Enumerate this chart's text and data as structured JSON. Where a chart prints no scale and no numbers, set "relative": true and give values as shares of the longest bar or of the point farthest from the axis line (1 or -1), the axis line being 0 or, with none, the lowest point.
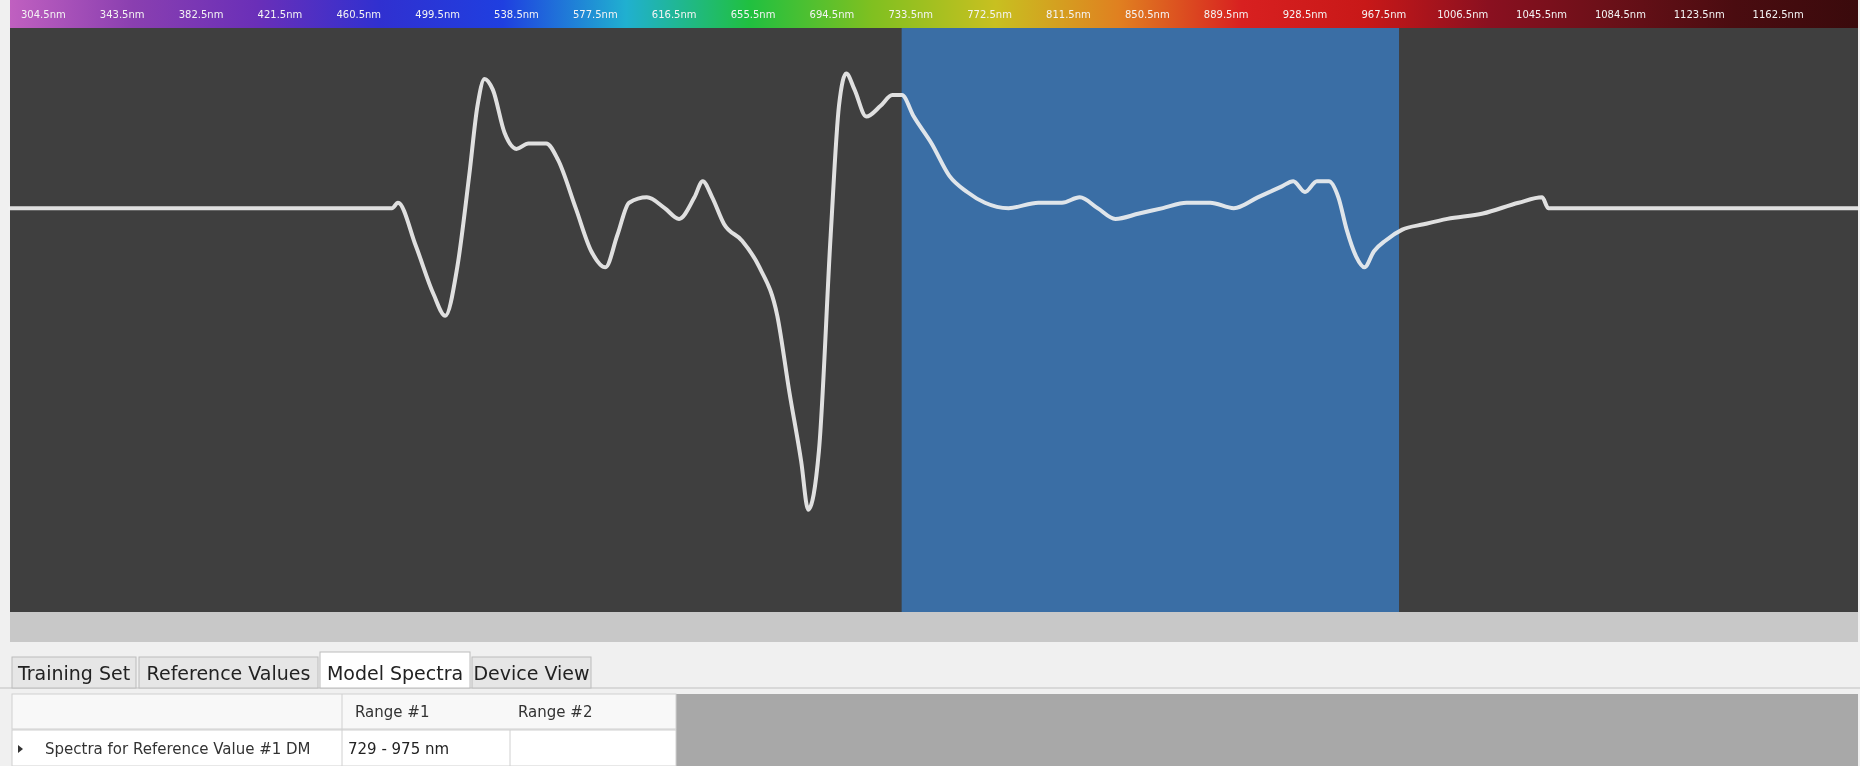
{
  "chart_data": {
    "type": "line",
    "relative": true,
    "xlim": [
      288,
      1202
    ],
    "xticks": [
      {
        "value": 304.5,
        "label": "304.5nm"
      },
      {
        "value": 343.5,
        "label": "343.5nm"
      },
      {
        "value": 382.5,
        "label": "382.5nm"
      },
      {
        "value": 421.5,
        "label": "421.5nm"
      },
      {
        "value": 460.5,
        "label": "460.5nm"
      },
      {
        "value": 499.5,
        "label": "499.5nm"
      },
      {
        "value": 538.5,
        "label": "538.5nm"
      },
      {
        "value": 577.5,
        "label": "577.5nm"
      },
      {
        "value": 616.5,
        "label": "616.5nm"
      },
      {
        "value": 655.5,
        "label": "655.5nm"
      },
      {
        "value": 694.5,
        "label": "694.5nm"
      },
      {
        "value": 733.5,
        "label": "733.5nm"
      },
      {
        "value": 772.5,
        "label": "772.5nm"
      },
      {
        "value": 811.5,
        "label": "811.5nm"
      },
      {
        "value": 850.5,
        "label": "850.5nm"
      },
      {
        "value": 889.5,
        "label": "889.5nm"
      },
      {
        "value": 928.5,
        "label": "928.5nm"
      },
      {
        "value": 967.5,
        "label": "967.5nm"
      },
      {
        "value": 1006.5,
        "label": "1006.5nm"
      },
      {
        "value": 1045.5,
        "label": "1045.5nm"
      },
      {
        "value": 1084.5,
        "label": "1084.5nm"
      },
      {
        "value": 1123.5,
        "label": "1123.5nm"
      },
      {
        "value": 1162.5,
        "label": "1162.5nm"
      }
    ],
    "x": [
      288,
      476.9,
      479.9,
      488.7,
      497.5,
      503.3,
      509.2,
      515.1,
      519.2,
      522.7,
      526.8,
      532.6,
      538.5,
      544.4,
      553.2,
      559,
      567.8,
      575.5,
      582.5,
      588.4,
      594.2,
      603,
      611.8,
      618.9,
      626.5,
      630.6,
      635.3,
      641.2,
      649.9,
      658.7,
      667.5,
      673.4,
      679.3,
      682.8,
      688.1,
      693.9,
      698,
      701.6,
      705.7,
      711.5,
      718.6,
      724.4,
      729.1,
      735,
      743.8,
      752.6,
      761.4,
      770.2,
      781.9,
      796.6,
      808.3,
      817.1,
      825.9,
      834.7,
      846.4,
      858.2,
      869.9,
      881.6,
      893.3,
      905.1,
      916.8,
      922.7,
      928.5,
      934.4,
      940.3,
      945,
      949.1,
      953.8,
      957.9,
      962.6,
      968.4,
      976.6,
      987.2,
      998.9,
      1016.5,
      1034.1,
      1045.8,
      1048.8,
      1051.7,
      1202
    ],
    "series": [
      {
        "color": "#f2f2f2",
        "values": [
          0.75,
          0.75,
          0.76,
          0.68,
          0.59,
          0.55,
          0.64,
          0.81,
          0.94,
          0.99,
          0.97,
          0.89,
          0.86,
          0.87,
          0.87,
          0.84,
          0.75,
          0.67,
          0.64,
          0.7,
          0.76,
          0.77,
          0.75,
          0.73,
          0.77,
          0.8,
          0.77,
          0.72,
          0.69,
          0.64,
          0.55,
          0.41,
          0.28,
          0.19,
          0.3,
          0.7,
          0.94,
          1,
          0.97,
          0.92,
          0.94,
          0.96,
          0.96,
          0.92,
          0.87,
          0.81,
          0.78,
          0.76,
          0.75,
          0.76,
          0.76,
          0.77,
          0.75,
          0.73,
          0.74,
          0.75,
          0.76,
          0.76,
          0.75,
          0.77,
          0.79,
          0.8,
          0.78,
          0.8,
          0.8,
          0.77,
          0.71,
          0.66,
          0.64,
          0.67,
          0.69,
          0.71,
          0.72,
          0.73,
          0.74,
          0.76,
          0.77,
          0.75,
          0.75,
          0.75
        ]
      }
    ],
    "bands": [
      {
        "axis": "x",
        "from": 729,
        "to": 975,
        "color": "#3a6ea5"
      }
    ],
    "annotations": [
      "Training Set",
      "Reference Values",
      "Model Spectra",
      "Device View",
      "Range #1",
      "Range #2",
      "Spectra for Reference Value #1 DM",
      "729 - 975 nm"
    ]
  }
}
